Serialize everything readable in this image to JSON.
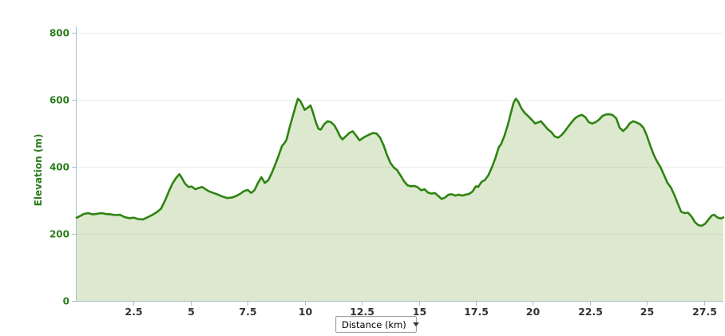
{
  "chart": {
    "y_axis": {
      "title": "Elevation (m)",
      "ticks": [
        0,
        200,
        400,
        600,
        800
      ],
      "range": [
        0,
        800
      ]
    },
    "x_axis": {
      "ticks": [
        2.5,
        5,
        7.5,
        10,
        12.5,
        15,
        17.5,
        20,
        22.5,
        25,
        27.5
      ],
      "range": [
        0,
        28.35
      ]
    },
    "colors": {
      "line": "#2e8412",
      "fill": "#dde9cf",
      "axis": "#a9bfca",
      "grid": "rgba(70,80,90,0.10)",
      "y_label": "#2b7d1c",
      "x_label": "#333333"
    }
  },
  "controls": {
    "x_metric_select": {
      "value": "Distance (km)",
      "icon": "caret-down"
    }
  },
  "chart_data": {
    "type": "area",
    "title": "",
    "xlabel": "Distance (km)",
    "ylabel": "Elevation (m)",
    "xlim": [
      0,
      28.35
    ],
    "ylim": [
      0,
      800
    ],
    "grid": "horizontal",
    "legend": "none",
    "units": {
      "x": "km",
      "y": "m"
    },
    "points": [
      [
        0.0,
        248
      ],
      [
        0.15,
        253
      ],
      [
        0.3,
        259
      ],
      [
        0.5,
        262
      ],
      [
        0.7,
        258
      ],
      [
        0.9,
        260
      ],
      [
        1.1,
        262
      ],
      [
        1.3,
        259
      ],
      [
        1.5,
        258
      ],
      [
        1.7,
        256
      ],
      [
        1.9,
        257
      ],
      [
        2.1,
        250
      ],
      [
        2.3,
        247
      ],
      [
        2.5,
        248
      ],
      [
        2.7,
        244
      ],
      [
        2.9,
        243
      ],
      [
        3.1,
        249
      ],
      [
        3.3,
        256
      ],
      [
        3.5,
        264
      ],
      [
        3.7,
        275
      ],
      [
        3.9,
        303
      ],
      [
        4.05,
        328
      ],
      [
        4.2,
        350
      ],
      [
        4.35,
        366
      ],
      [
        4.5,
        378
      ],
      [
        4.6,
        368
      ],
      [
        4.75,
        350
      ],
      [
        4.9,
        340
      ],
      [
        5.05,
        341
      ],
      [
        5.2,
        333
      ],
      [
        5.35,
        337
      ],
      [
        5.5,
        340
      ],
      [
        5.65,
        333
      ],
      [
        5.8,
        327
      ],
      [
        6.0,
        322
      ],
      [
        6.2,
        317
      ],
      [
        6.4,
        311
      ],
      [
        6.6,
        307
      ],
      [
        6.8,
        308
      ],
      [
        7.0,
        313
      ],
      [
        7.2,
        321
      ],
      [
        7.35,
        328
      ],
      [
        7.5,
        331
      ],
      [
        7.65,
        322
      ],
      [
        7.8,
        331
      ],
      [
        7.95,
        352
      ],
      [
        8.1,
        369
      ],
      [
        8.25,
        352
      ],
      [
        8.4,
        360
      ],
      [
        8.55,
        381
      ],
      [
        8.7,
        406
      ],
      [
        8.85,
        433
      ],
      [
        9.0,
        462
      ],
      [
        9.1,
        470
      ],
      [
        9.2,
        481
      ],
      [
        9.35,
        521
      ],
      [
        9.5,
        557
      ],
      [
        9.6,
        582
      ],
      [
        9.7,
        603
      ],
      [
        9.8,
        597
      ],
      [
        9.9,
        583
      ],
      [
        10.0,
        570
      ],
      [
        10.1,
        575
      ],
      [
        10.25,
        583
      ],
      [
        10.35,
        564
      ],
      [
        10.5,
        530
      ],
      [
        10.6,
        513
      ],
      [
        10.7,
        511
      ],
      [
        10.85,
        527
      ],
      [
        11.0,
        536
      ],
      [
        11.15,
        533
      ],
      [
        11.3,
        523
      ],
      [
        11.45,
        505
      ],
      [
        11.55,
        490
      ],
      [
        11.65,
        482
      ],
      [
        11.8,
        491
      ],
      [
        11.95,
        501
      ],
      [
        12.1,
        506
      ],
      [
        12.25,
        493
      ],
      [
        12.4,
        479
      ],
      [
        12.55,
        486
      ],
      [
        12.7,
        492
      ],
      [
        12.85,
        497
      ],
      [
        13.0,
        501
      ],
      [
        13.15,
        499
      ],
      [
        13.3,
        487
      ],
      [
        13.45,
        465
      ],
      [
        13.6,
        436
      ],
      [
        13.75,
        412
      ],
      [
        13.9,
        398
      ],
      [
        14.05,
        390
      ],
      [
        14.2,
        374
      ],
      [
        14.35,
        357
      ],
      [
        14.5,
        345
      ],
      [
        14.65,
        342
      ],
      [
        14.8,
        343
      ],
      [
        14.95,
        339
      ],
      [
        15.1,
        330
      ],
      [
        15.25,
        333
      ],
      [
        15.4,
        323
      ],
      [
        15.55,
        320
      ],
      [
        15.7,
        322
      ],
      [
        15.85,
        313
      ],
      [
        16.0,
        304
      ],
      [
        16.15,
        308
      ],
      [
        16.3,
        317
      ],
      [
        16.45,
        318
      ],
      [
        16.6,
        314
      ],
      [
        16.75,
        317
      ],
      [
        16.9,
        314
      ],
      [
        17.05,
        317
      ],
      [
        17.2,
        319
      ],
      [
        17.35,
        326
      ],
      [
        17.5,
        342
      ],
      [
        17.6,
        340
      ],
      [
        17.75,
        355
      ],
      [
        17.9,
        361
      ],
      [
        18.05,
        375
      ],
      [
        18.2,
        398
      ],
      [
        18.35,
        425
      ],
      [
        18.5,
        458
      ],
      [
        18.6,
        467
      ],
      [
        18.75,
        492
      ],
      [
        18.9,
        525
      ],
      [
        19.05,
        565
      ],
      [
        19.15,
        590
      ],
      [
        19.25,
        603
      ],
      [
        19.35,
        595
      ],
      [
        19.5,
        574
      ],
      [
        19.65,
        560
      ],
      [
        19.8,
        551
      ],
      [
        19.95,
        540
      ],
      [
        20.1,
        529
      ],
      [
        20.25,
        533
      ],
      [
        20.35,
        536
      ],
      [
        20.5,
        524
      ],
      [
        20.65,
        512
      ],
      [
        20.8,
        504
      ],
      [
        20.95,
        491
      ],
      [
        21.1,
        487
      ],
      [
        21.25,
        494
      ],
      [
        21.4,
        506
      ],
      [
        21.55,
        520
      ],
      [
        21.7,
        533
      ],
      [
        21.85,
        545
      ],
      [
        22.0,
        552
      ],
      [
        22.15,
        555
      ],
      [
        22.3,
        548
      ],
      [
        22.45,
        533
      ],
      [
        22.6,
        529
      ],
      [
        22.75,
        533
      ],
      [
        22.9,
        541
      ],
      [
        23.05,
        552
      ],
      [
        23.2,
        556
      ],
      [
        23.35,
        557
      ],
      [
        23.5,
        554
      ],
      [
        23.65,
        545
      ],
      [
        23.8,
        517
      ],
      [
        23.95,
        507
      ],
      [
        24.1,
        516
      ],
      [
        24.25,
        530
      ],
      [
        24.4,
        536
      ],
      [
        24.55,
        532
      ],
      [
        24.7,
        527
      ],
      [
        24.85,
        516
      ],
      [
        25.0,
        492
      ],
      [
        25.15,
        462
      ],
      [
        25.3,
        435
      ],
      [
        25.45,
        415
      ],
      [
        25.6,
        398
      ],
      [
        25.75,
        375
      ],
      [
        25.9,
        352
      ],
      [
        26.05,
        338
      ],
      [
        26.2,
        316
      ],
      [
        26.35,
        290
      ],
      [
        26.5,
        266
      ],
      [
        26.65,
        262
      ],
      [
        26.8,
        263
      ],
      [
        26.95,
        252
      ],
      [
        27.1,
        235
      ],
      [
        27.25,
        226
      ],
      [
        27.4,
        224
      ],
      [
        27.55,
        230
      ],
      [
        27.7,
        243
      ],
      [
        27.85,
        255
      ],
      [
        27.95,
        257
      ],
      [
        28.05,
        251
      ],
      [
        28.15,
        247
      ],
      [
        28.25,
        246
      ],
      [
        28.35,
        249
      ]
    ]
  }
}
